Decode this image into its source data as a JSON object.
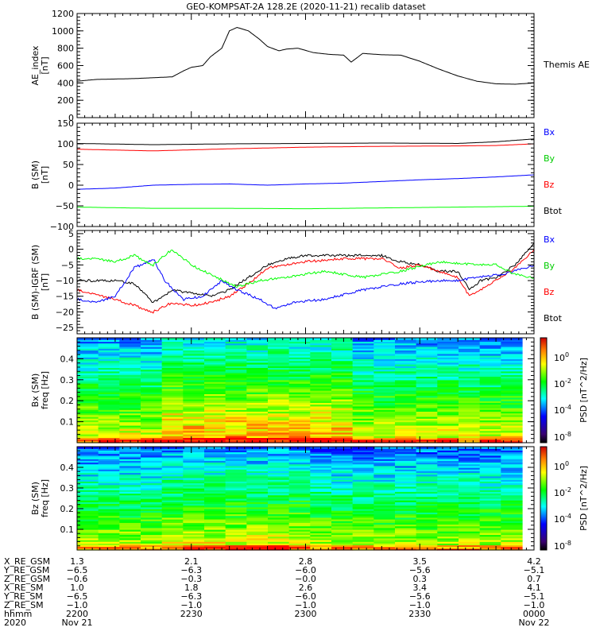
{
  "title": "GEO-KOMPSAT-2A 128.2E (2020-11-21) recalib dataset",
  "time_axis": {
    "start": "2200",
    "end": "0000",
    "ticks_minutes": [
      0,
      30,
      60,
      90,
      120
    ]
  },
  "chart_data": [
    {
      "type": "line",
      "ylabel": "AE_index",
      "yunit": "[nT]",
      "ylim": [
        0,
        1200
      ],
      "yticks": [
        0,
        200,
        400,
        600,
        800,
        1000,
        1200
      ],
      "x_unit": "minutes since 2200 UT",
      "series": [
        {
          "name": "Themis AE",
          "color": "#000000",
          "x": [
            0,
            5,
            10,
            15,
            20,
            25,
            28,
            30,
            33,
            35,
            38,
            40,
            42,
            45,
            48,
            50,
            53,
            55,
            58,
            62,
            66,
            70,
            72,
            75,
            80,
            85,
            90,
            95,
            100,
            105,
            110,
            115,
            120
          ],
          "y": [
            420,
            440,
            445,
            450,
            460,
            470,
            540,
            580,
            600,
            700,
            800,
            1000,
            1040,
            1000,
            900,
            820,
            770,
            790,
            800,
            750,
            730,
            720,
            640,
            740,
            725,
            720,
            650,
            560,
            480,
            420,
            390,
            385,
            400
          ]
        }
      ]
    },
    {
      "type": "line",
      "ylabel": "B (SM)",
      "yunit": "[nT]",
      "ylim": [
        -100,
        150
      ],
      "yticks": [
        -100,
        -50,
        0,
        50,
        100,
        150
      ],
      "series": [
        {
          "name": "Btot",
          "color": "#000000",
          "x": [
            0,
            20,
            40,
            60,
            80,
            100,
            110,
            120
          ],
          "y": [
            101,
            98,
            100,
            101,
            102,
            101,
            105,
            112
          ]
        },
        {
          "name": "Bz",
          "color": "#ff0000",
          "x": [
            0,
            20,
            40,
            60,
            80,
            100,
            110,
            120
          ],
          "y": [
            87,
            83,
            88,
            92,
            94,
            95,
            96,
            100
          ]
        },
        {
          "name": "Bx",
          "color": "#0000ff",
          "x": [
            0,
            10,
            20,
            30,
            40,
            50,
            60,
            70,
            80,
            90,
            100,
            110,
            120
          ],
          "y": [
            -10,
            -7,
            0,
            2,
            3,
            0,
            3,
            5,
            9,
            13,
            16,
            20,
            25
          ]
        },
        {
          "name": "By",
          "color": "#00ff00",
          "x": [
            0,
            20,
            40,
            60,
            80,
            100,
            120
          ],
          "y": [
            -53,
            -56,
            -56,
            -57,
            -55,
            -53,
            -51
          ]
        }
      ],
      "legend": [
        "Bx",
        "By",
        "Bz",
        "Btot"
      ]
    },
    {
      "type": "line",
      "ylabel": "B (SM)-IGRF (SM)",
      "yunit": "[nT]",
      "ylim": [
        -27,
        6
      ],
      "yticks": [
        -25,
        -20,
        -15,
        -10,
        -5,
        0,
        5
      ],
      "series": [
        {
          "name": "Btot",
          "color": "#000000",
          "x": [
            0,
            10,
            15,
            20,
            25,
            30,
            35,
            40,
            45,
            50,
            55,
            60,
            70,
            80,
            85,
            90,
            95,
            100,
            103,
            106,
            110,
            115,
            120
          ],
          "y": [
            -10,
            -10,
            -11,
            -17,
            -13,
            -14,
            -15,
            -13,
            -9,
            -5,
            -3,
            -2,
            -2,
            -2,
            -4,
            -5,
            -7,
            -7,
            -13,
            -10,
            -9,
            -5,
            2
          ]
        },
        {
          "name": "Bz",
          "color": "#ff0000",
          "x": [
            0,
            10,
            15,
            20,
            25,
            30,
            35,
            40,
            45,
            50,
            55,
            60,
            70,
            80,
            85,
            90,
            95,
            100,
            103,
            106,
            110,
            115,
            120
          ],
          "y": [
            -13,
            -16,
            -18,
            -20,
            -17,
            -18,
            -17,
            -15,
            -11,
            -6,
            -5,
            -4,
            -3,
            -3,
            -6,
            -5,
            -7,
            -9,
            -15,
            -13,
            -10,
            -6,
            0
          ]
        },
        {
          "name": "Bx",
          "color": "#0000ff",
          "x": [
            0,
            5,
            10,
            15,
            20,
            23,
            28,
            33,
            38,
            42,
            48,
            52,
            57,
            65,
            75,
            85,
            95,
            100,
            105,
            112,
            120
          ],
          "y": [
            -16,
            -17,
            -15,
            -6,
            -3,
            -10,
            -16,
            -15,
            -10,
            -13,
            -16,
            -19,
            -17,
            -16,
            -13,
            -11,
            -10,
            -10,
            -9,
            -8,
            -5
          ]
        },
        {
          "name": "By",
          "color": "#00ff00",
          "x": [
            0,
            5,
            10,
            15,
            20,
            25,
            30,
            35,
            42,
            48,
            55,
            65,
            75,
            85,
            95,
            105,
            110,
            115,
            120
          ],
          "y": [
            -3,
            -3,
            -4,
            -2,
            -5,
            0,
            -5,
            -8,
            -12,
            -10,
            -9,
            -7,
            -9,
            -7,
            -4,
            -5,
            -5,
            -8,
            -9
          ]
        }
      ],
      "legend": [
        "Bx",
        "By",
        "Bz",
        "Btot"
      ]
    },
    {
      "type": "heatmap",
      "ylabel": "Bx (SM)",
      "yunit": "freq [Hz]",
      "ylim": [
        0,
        0.5
      ],
      "yticks": [
        0.1,
        0.2,
        0.3,
        0.4
      ],
      "colorbar": {
        "label": "PSD [nT^2/Hz]",
        "ticks": [
          "10^0",
          "10^-2",
          "10^-4",
          "10^-8"
        ]
      }
    },
    {
      "type": "heatmap",
      "ylabel": "Bz (SM)",
      "yunit": "freq [Hz]",
      "ylim": [
        0,
        0.5
      ],
      "yticks": [
        0.1,
        0.2,
        0.3,
        0.4
      ],
      "colorbar": {
        "label": "PSD [nT^2/Hz]",
        "ticks": [
          "10^0",
          "10^-2",
          "10^-4",
          "10^-8"
        ]
      }
    }
  ],
  "right_labels": {
    "ae": "Themis AE"
  },
  "ephemeris": {
    "rows": [
      {
        "label": "X_RE_GSM",
        "values": [
          "1.3",
          "2.1",
          "2.8",
          "3.5",
          "4.2"
        ]
      },
      {
        "label": "Y_RE_GSM",
        "values": [
          "-6.5",
          "-6.3",
          "-6.0",
          "-5.6",
          "-5.1"
        ]
      },
      {
        "label": "Z_RE_GSM",
        "values": [
          "-0.6",
          "-0.3",
          "-0.0",
          "0.3",
          "0.7"
        ]
      },
      {
        "label": "X_RE_SM",
        "values": [
          "1.0",
          "1.8",
          "2.6",
          "3.4",
          "4.1"
        ]
      },
      {
        "label": "Y_RE_SM",
        "values": [
          "-6.5",
          "-6.3",
          "-6.0",
          "-5.6",
          "-5.1"
        ]
      },
      {
        "label": "Z_RE_SM",
        "values": [
          "-1.0",
          "-1.0",
          "-1.0",
          "-1.0",
          "-1.0"
        ]
      },
      {
        "label": "hhmm",
        "values": [
          "2200",
          "2230",
          "2300",
          "2330",
          "0000"
        ]
      },
      {
        "label": "2020",
        "values": [
          "Nov 21",
          "",
          "",
          "",
          "Nov 22"
        ]
      }
    ]
  }
}
